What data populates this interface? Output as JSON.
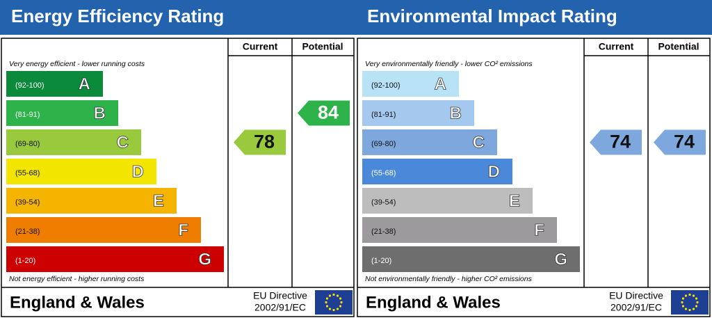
{
  "panels": [
    {
      "title": "Energy Efficiency Rating",
      "headers": [
        "Current",
        "Potential"
      ],
      "top_note": "Very energy efficient - lower running costs",
      "bottom_note": "Not energy efficient - higher running costs",
      "bands": [
        {
          "range": "(92-100)",
          "letter": "A",
          "color": "#0c8a3c"
        },
        {
          "range": "(81-91)",
          "letter": "B",
          "color": "#2db34a"
        },
        {
          "range": "(69-80)",
          "letter": "C",
          "color": "#99c93c"
        },
        {
          "range": "(55-68)",
          "letter": "D",
          "color": "#f2e600"
        },
        {
          "range": "(39-54)",
          "letter": "E",
          "color": "#f4b400"
        },
        {
          "range": "(21-38)",
          "letter": "F",
          "color": "#ef7d00"
        },
        {
          "range": "(1-20)",
          "letter": "G",
          "color": "#cc0000"
        }
      ],
      "current": 78,
      "potential": 84,
      "footer": "England & Wales",
      "directive": "EU Directive",
      "directive_code": "2002/91/EC"
    },
    {
      "title": "Environmental Impact Rating",
      "headers": [
        "Current",
        "Potential"
      ],
      "top_note": "Very environmentally friendly - lower CO² emissions",
      "bottom_note": "Not environmentally friendly - higher CO² emissions",
      "bands": [
        {
          "range": "(92-100)",
          "letter": "A",
          "color": "#b8e3f7"
        },
        {
          "range": "(81-91)",
          "letter": "B",
          "color": "#a5c8ef"
        },
        {
          "range": "(69-80)",
          "letter": "C",
          "color": "#7ea7de"
        },
        {
          "range": "(55-68)",
          "letter": "D",
          "color": "#4a88d9"
        },
        {
          "range": "(39-54)",
          "letter": "E",
          "color": "#bdbdbd"
        },
        {
          "range": "(21-38)",
          "letter": "F",
          "color": "#9c9a9c"
        },
        {
          "range": "(1-20)",
          "letter": "G",
          "color": "#6e6e6e"
        }
      ],
      "current": 74,
      "potential": 74,
      "footer": "England & Wales",
      "directive": "EU Directive",
      "directive_code": "2002/91/EC"
    }
  ]
}
